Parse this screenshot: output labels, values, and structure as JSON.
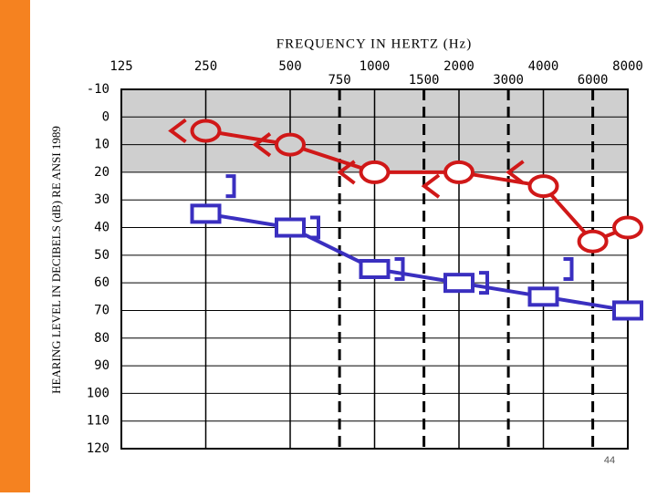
{
  "chart_data": {
    "type": "audiogram",
    "title": "FREQUENCY IN HERTZ (Hz)",
    "y_label": "HEARING LEVEL IN DECIBELS (dB) RE ANSI 1989",
    "page_number": "44",
    "xscale": "log",
    "xlim": [
      125,
      8000
    ],
    "xticks": [
      125,
      250,
      500,
      1000,
      2000,
      4000,
      8000
    ],
    "xminorticks": [
      750,
      1500,
      3000,
      6000
    ],
    "ylim": [
      -10,
      120
    ],
    "yinverted": true,
    "yticks": [
      -10,
      0,
      10,
      20,
      30,
      40,
      50,
      60,
      70,
      80,
      90,
      100,
      110,
      120
    ],
    "shaded_band": [
      -10,
      20
    ],
    "grid": true,
    "series": [
      {
        "color": "#d01818",
        "marker": "circle",
        "line": true,
        "x": [
          250,
          500,
          1000,
          2000,
          4000,
          6000,
          8000
        ],
        "values": [
          5,
          10,
          20,
          20,
          25,
          45,
          40
        ]
      },
      {
        "color": "#d01818",
        "marker": "left-angle",
        "line": false,
        "x": [
          250,
          500,
          1000,
          2000,
          4000
        ],
        "values": [
          5,
          10,
          20,
          25,
          20
        ]
      },
      {
        "color": "#3a2fc0",
        "marker": "square",
        "line": true,
        "x": [
          250,
          500,
          1000,
          2000,
          4000,
          8000
        ],
        "values": [
          35,
          40,
          55,
          60,
          65,
          70
        ]
      },
      {
        "color": "#3a2fc0",
        "marker": "right-bracket",
        "line": false,
        "x": [
          250,
          500,
          1000,
          2000,
          4000
        ],
        "values": [
          25,
          40,
          55,
          60,
          55
        ]
      }
    ]
  }
}
